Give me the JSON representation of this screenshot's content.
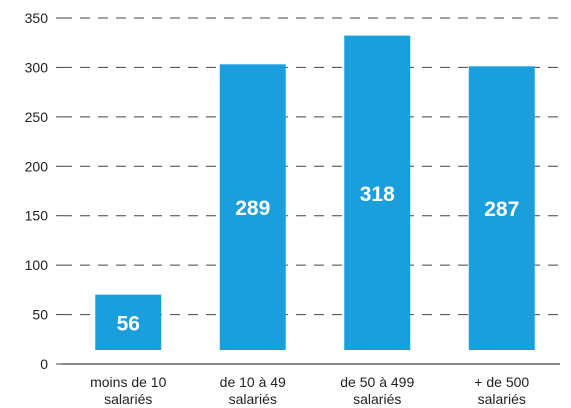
{
  "chart_data": {
    "type": "bar",
    "categories": [
      [
        "moins de 10",
        "salariés"
      ],
      [
        "de 10 à 49",
        "salariés"
      ],
      [
        "de 50 à 499",
        "salariés"
      ],
      [
        "+ de 500",
        "salariés"
      ]
    ],
    "values": [
      56,
      289,
      318,
      287
    ],
    "data_labels": [
      "56",
      "289",
      "318",
      "287"
    ],
    "title": "",
    "xlabel": "",
    "ylabel": "",
    "ylim": [
      0,
      350
    ],
    "yticks": [
      0,
      50,
      100,
      150,
      200,
      250,
      300,
      350
    ],
    "grid": true,
    "legend": "none",
    "bar_color": "#1a9fdc"
  }
}
